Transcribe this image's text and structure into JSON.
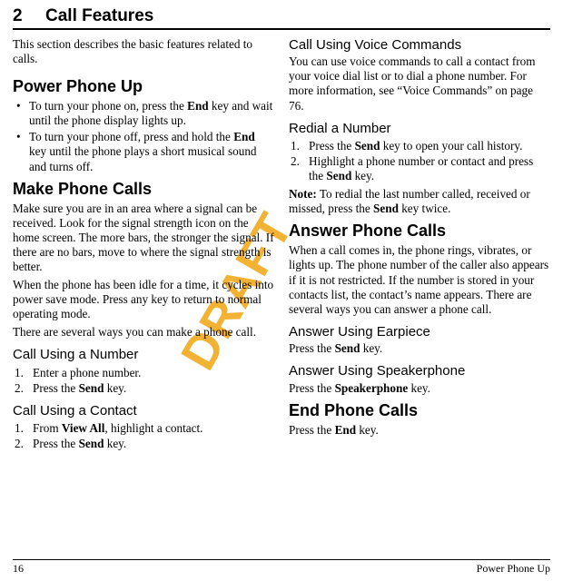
{
  "chapter": {
    "number": "2",
    "title": "Call Features"
  },
  "watermark": "DRAFT",
  "left": {
    "intro": "This section describes the basic features related to calls.",
    "power_up": {
      "heading": "Power Phone Up",
      "b1_pre": "To turn your phone on, press the ",
      "b1_bold": "End",
      "b1_post": " key and wait until the phone display lights up.",
      "b2_pre": "To turn your phone off, press and hold the ",
      "b2_bold": "End",
      "b2_post": " key until the phone plays a short musical sound and turns off."
    },
    "make_calls": {
      "heading": "Make Phone Calls",
      "p1": "Make sure you are in an area where a signal can be received. Look for the signal strength icon on the home screen. The more bars, the stronger the signal. If there are no bars, move to where the signal strength is better.",
      "p2": "When the phone has been idle for a time, it cycles into power save mode. Press any key to return to normal operating mode.",
      "p3": "There are several ways you can make a phone call."
    },
    "using_number": {
      "heading": "Call Using a Number",
      "s1": "Enter a phone number.",
      "s2_pre": "Press the ",
      "s2_bold": "Send",
      "s2_post": " key."
    },
    "using_contact": {
      "heading": "Call Using a Contact",
      "s1_pre": "From ",
      "s1_bold": "View All",
      "s1_post": ", highlight a contact.",
      "s2_pre": "Press the ",
      "s2_bold": "Send",
      "s2_post": " key."
    }
  },
  "right": {
    "voice": {
      "heading": "Call Using Voice Commands",
      "p1": "You can use voice commands to call a contact from your voice dial list or to dial a phone number. For more information, see “Voice Commands” on page 76."
    },
    "redial": {
      "heading": "Redial a Number",
      "s1_pre": "Press the ",
      "s1_bold": "Send",
      "s1_post": " key to open your call history.",
      "s2_pre": "Highlight a phone number or contact and press the ",
      "s2_bold": "Send",
      "s2_post": " key.",
      "note_label": "Note:",
      "note_pre": " To redial the last number called, received or missed, press the ",
      "note_bold": "Send",
      "note_post": " key twice."
    },
    "answer": {
      "heading": "Answer Phone Calls",
      "p1": "When a call comes in, the phone rings, vibrates, or lights up. The phone number of the caller also appears if it is not restricted. If the number is stored in your contacts list, the contact’s name appears. There are several ways you can answer a phone call."
    },
    "earpiece": {
      "heading": "Answer Using Earpiece",
      "p_pre": "Press the ",
      "p_bold": "Send",
      "p_post": " key."
    },
    "speaker": {
      "heading": "Answer Using Speakerphone",
      "p_pre": "Press the ",
      "p_bold": "Speakerphone",
      "p_post": " key."
    },
    "end": {
      "heading": "End Phone Calls",
      "p_pre": "Press the ",
      "p_bold": "End",
      "p_post": " key."
    }
  },
  "footer": {
    "page": "16",
    "section": "Power Phone Up"
  }
}
